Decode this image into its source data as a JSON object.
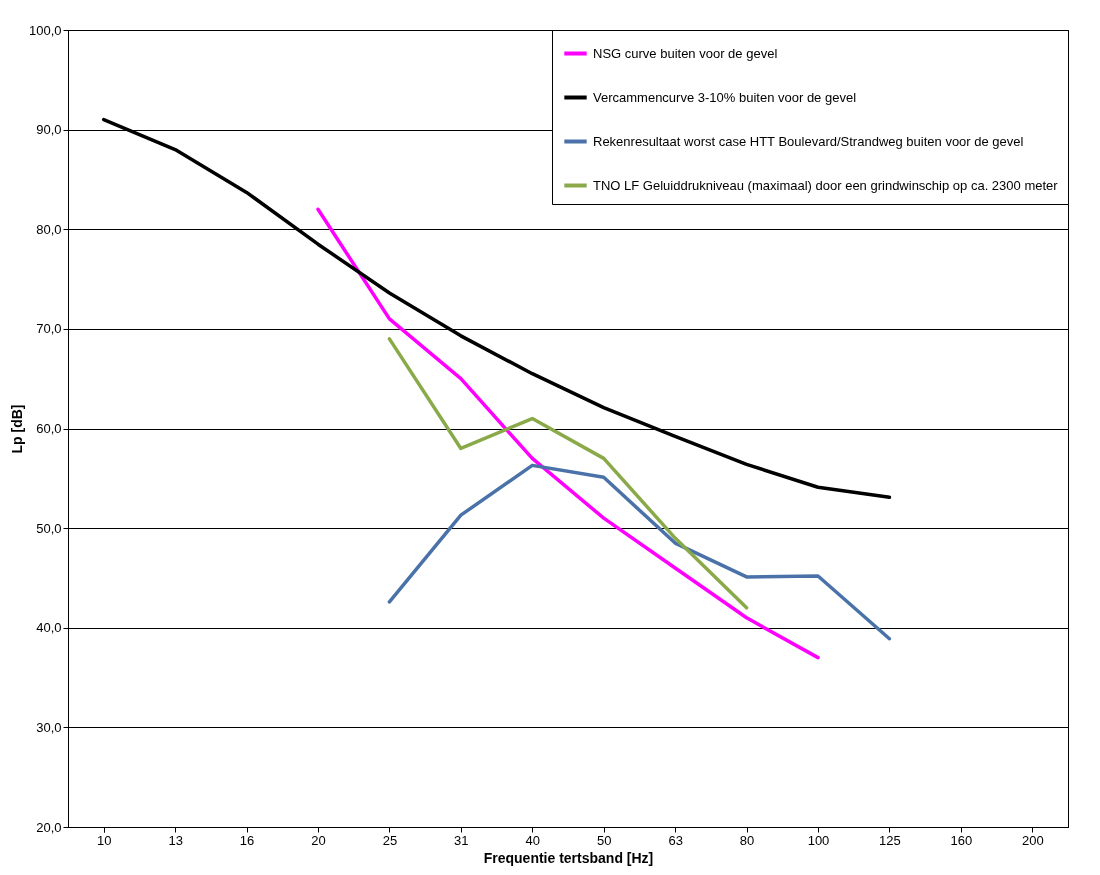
{
  "chart_data": {
    "type": "line",
    "xlabel": "Frequentie tertsband  [Hz]",
    "ylabel": "Lp [dB]",
    "categories": [
      "10",
      "13",
      "16",
      "20",
      "25",
      "31",
      "40",
      "50",
      "63",
      "80",
      "100",
      "125",
      "160",
      "200"
    ],
    "ylim": [
      20,
      100
    ],
    "yticks": [
      {
        "value": 20,
        "label": "20,0"
      },
      {
        "value": 30,
        "label": "30,0"
      },
      {
        "value": 40,
        "label": "40,0"
      },
      {
        "value": 50,
        "label": "50,0"
      },
      {
        "value": 60,
        "label": "60,0"
      },
      {
        "value": 70,
        "label": "70,0"
      },
      {
        "value": 80,
        "label": "80,0"
      },
      {
        "value": 90,
        "label": "90,0"
      },
      {
        "value": 100,
        "label": "100,0"
      }
    ],
    "grid": "y",
    "legend": "top right",
    "line_style": "solid",
    "marker": "none",
    "series": [
      {
        "name": "NSG curve buiten voor de gevel",
        "color": "#ff00ff",
        "values": [
          null,
          null,
          null,
          82,
          71,
          65,
          57,
          51,
          46,
          41,
          37,
          null,
          null,
          null
        ]
      },
      {
        "name": "Vercammencurve 3-10% buiten voor de gevel",
        "color": "#000000",
        "values": [
          91,
          88,
          83.7,
          78.5,
          73.6,
          69.3,
          65.5,
          62.1,
          59.2,
          56.4,
          54.1,
          53.1,
          null,
          null
        ]
      },
      {
        "name": "Rekenresultaat worst case HTT Boulevard/Strandweg buiten voor de gevel",
        "color": "#4a72a8",
        "values": [
          null,
          null,
          null,
          null,
          42.6,
          51.3,
          56.3,
          55.1,
          48.5,
          45.1,
          45.2,
          38.9,
          null,
          null
        ]
      },
      {
        "name": "TNO LF Geluiddrukniveau (maximaal) door een grindwinschip op ca. 2300 meter",
        "color": "#8aaa4a",
        "values": [
          null,
          null,
          null,
          null,
          69,
          58,
          61,
          57,
          49,
          42,
          null,
          null,
          null,
          null
        ]
      }
    ]
  }
}
